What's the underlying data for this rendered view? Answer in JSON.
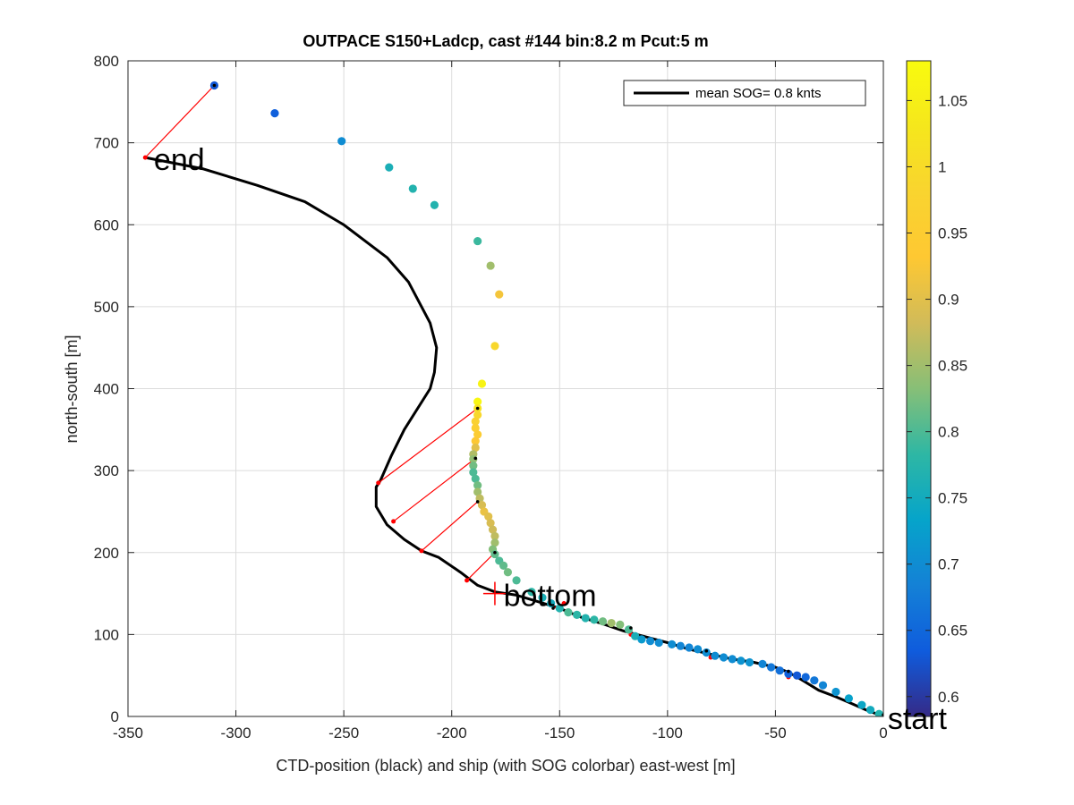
{
  "chart_data": {
    "type": "scatter",
    "title": "OUTPACE S150+Ladcp, cast #144 bin:8.2 m  Pcut:5 m",
    "xlabel": "CTD-position (black) and ship (with SOG colorbar) east-west [m]",
    "ylabel": "north-south [m]",
    "xlim": [
      -350,
      0
    ],
    "ylim": [
      0,
      800
    ],
    "xticks": [
      "-350",
      "-300",
      "-250",
      "-200",
      "-150",
      "-100",
      "-50",
      "0"
    ],
    "yticks": [
      "0",
      "100",
      "200",
      "300",
      "400",
      "500",
      "600",
      "700",
      "800"
    ],
    "grid": true,
    "legend": {
      "entry": "mean SOG=  0.8 knts",
      "placement": "top-right"
    },
    "colorbar": {
      "range": [
        0.585,
        1.08
      ],
      "ticks": [
        "0.6",
        "0.65",
        "0.7",
        "0.75",
        "0.8",
        "0.85",
        "0.9",
        "0.95",
        "1",
        "1.05"
      ],
      "colormap": "parula"
    },
    "annotations": [
      {
        "text": "end",
        "x": -338,
        "y": 680
      },
      {
        "text": "bottom",
        "x": -176,
        "y": 148
      },
      {
        "text": "start",
        "x": 2,
        "y": -2
      }
    ],
    "bottom_marker": {
      "x": -180,
      "y": 150
    },
    "ctd_track": [
      [
        0,
        0
      ],
      [
        -8,
        8
      ],
      [
        -15,
        16
      ],
      [
        -22,
        24
      ],
      [
        -30,
        32
      ],
      [
        -38,
        45
      ],
      [
        -44,
        54
      ],
      [
        -50,
        60
      ],
      [
        -60,
        66
      ],
      [
        -70,
        70
      ],
      [
        -80,
        76
      ],
      [
        -90,
        82
      ],
      [
        -100,
        90
      ],
      [
        -110,
        97
      ],
      [
        -120,
        104
      ],
      [
        -130,
        113
      ],
      [
        -140,
        121
      ],
      [
        -150,
        132
      ],
      [
        -160,
        140
      ],
      [
        -170,
        148
      ],
      [
        -180,
        152
      ],
      [
        -188,
        160
      ],
      [
        -196,
        176
      ],
      [
        -206,
        194
      ],
      [
        -214,
        202
      ],
      [
        -222,
        216
      ],
      [
        -230,
        234
      ],
      [
        -235,
        256
      ],
      [
        -235,
        280
      ],
      [
        -233,
        288
      ],
      [
        -228,
        318
      ],
      [
        -222,
        350
      ],
      [
        -210,
        400
      ],
      [
        -208,
        420
      ],
      [
        -207,
        450
      ],
      [
        -210,
        480
      ],
      [
        -214,
        500
      ],
      [
        -220,
        530
      ],
      [
        -230,
        560
      ],
      [
        -250,
        600
      ],
      [
        -268,
        628
      ],
      [
        -290,
        648
      ],
      [
        -315,
        668
      ],
      [
        -342,
        682
      ]
    ],
    "ship_points": [
      [
        -310,
        770,
        0.63
      ],
      [
        -282,
        736,
        0.64
      ],
      [
        -251,
        702,
        0.7
      ],
      [
        -229,
        670,
        0.76
      ],
      [
        -218,
        644,
        0.77
      ],
      [
        -208,
        624,
        0.77
      ],
      [
        -188,
        580,
        0.79
      ],
      [
        -182,
        550,
        0.85
      ],
      [
        -178,
        515,
        0.92
      ],
      [
        -180,
        452,
        0.99
      ],
      [
        -186,
        406,
        1.06
      ],
      [
        -188,
        384,
        1.07
      ],
      [
        -188,
        376,
        1.02
      ],
      [
        -188,
        368,
        0.99
      ],
      [
        -189,
        360,
        0.97
      ],
      [
        -189,
        352,
        0.96
      ],
      [
        -188,
        344,
        0.95
      ],
      [
        -189,
        336,
        0.93
      ],
      [
        -189,
        328,
        0.9
      ],
      [
        -190,
        320,
        0.86
      ],
      [
        -190,
        314,
        0.84
      ],
      [
        -190,
        306,
        0.82
      ],
      [
        -190,
        298,
        0.8
      ],
      [
        -189,
        290,
        0.8
      ],
      [
        -188,
        282,
        0.82
      ],
      [
        -188,
        274,
        0.85
      ],
      [
        -187,
        266,
        0.87
      ],
      [
        -186,
        258,
        0.89
      ],
      [
        -185,
        250,
        0.91
      ],
      [
        -183,
        244,
        0.9
      ],
      [
        -182,
        236,
        0.89
      ],
      [
        -181,
        228,
        0.88
      ],
      [
        -180,
        220,
        0.87
      ],
      [
        -180,
        212,
        0.85
      ],
      [
        -181,
        204,
        0.83
      ],
      [
        -180,
        198,
        0.81
      ],
      [
        -178,
        190,
        0.8
      ],
      [
        -176,
        184,
        0.81
      ],
      [
        -174,
        176,
        0.82
      ],
      [
        -170,
        166,
        0.8
      ],
      [
        -163,
        152,
        0.78
      ],
      [
        -158,
        145,
        0.76
      ],
      [
        -154,
        138,
        0.75
      ],
      [
        -150,
        132,
        0.77
      ],
      [
        -146,
        127,
        0.8
      ],
      [
        -142,
        124,
        0.78
      ],
      [
        -138,
        120,
        0.77
      ],
      [
        -134,
        118,
        0.78
      ],
      [
        -130,
        116,
        0.82
      ],
      [
        -126,
        114,
        0.85
      ],
      [
        -122,
        112,
        0.83
      ],
      [
        -118,
        106,
        0.8
      ],
      [
        -115,
        98,
        0.76
      ],
      [
        -112,
        94,
        0.72
      ],
      [
        -108,
        92,
        0.7
      ],
      [
        -104,
        90,
        0.7
      ],
      [
        -98,
        88,
        0.7
      ],
      [
        -94,
        86,
        0.69
      ],
      [
        -90,
        84,
        0.69
      ],
      [
        -86,
        82,
        0.7
      ],
      [
        -82,
        78,
        0.7
      ],
      [
        -78,
        74,
        0.7
      ],
      [
        -74,
        72,
        0.7
      ],
      [
        -70,
        70,
        0.7
      ],
      [
        -66,
        68,
        0.71
      ],
      [
        -62,
        66,
        0.71
      ],
      [
        -56,
        64,
        0.69
      ],
      [
        -52,
        60,
        0.67
      ],
      [
        -48,
        56,
        0.66
      ],
      [
        -44,
        52,
        0.64
      ],
      [
        -40,
        50,
        0.63
      ],
      [
        -36,
        48,
        0.65
      ],
      [
        -32,
        44,
        0.67
      ],
      [
        -28,
        38,
        0.69
      ],
      [
        -22,
        30,
        0.71
      ],
      [
        -16,
        22,
        0.73
      ],
      [
        -10,
        14,
        0.74
      ],
      [
        -6,
        8,
        0.75
      ],
      [
        -2,
        3,
        0.77
      ]
    ],
    "connectors": [
      [
        [
          -310,
          770
        ],
        [
          -342,
          682
        ]
      ],
      [
        [
          -188,
          376
        ],
        [
          -234,
          285
        ]
      ],
      [
        [
          -189,
          315
        ],
        [
          -227,
          238
        ]
      ],
      [
        [
          -188,
          262
        ],
        [
          -214,
          202
        ]
      ],
      [
        [
          -180,
          200
        ],
        [
          -193,
          166
        ]
      ],
      [
        [
          -153,
          132
        ],
        [
          -148,
          138
        ]
      ],
      [
        [
          -117,
          108
        ],
        [
          -117,
          100
        ]
      ],
      [
        [
          -82,
          80
        ],
        [
          -80,
          72
        ]
      ],
      [
        [
          -44,
          55
        ],
        [
          -44,
          48
        ]
      ],
      [
        [
          0,
          2
        ],
        [
          0,
          0
        ]
      ]
    ]
  }
}
